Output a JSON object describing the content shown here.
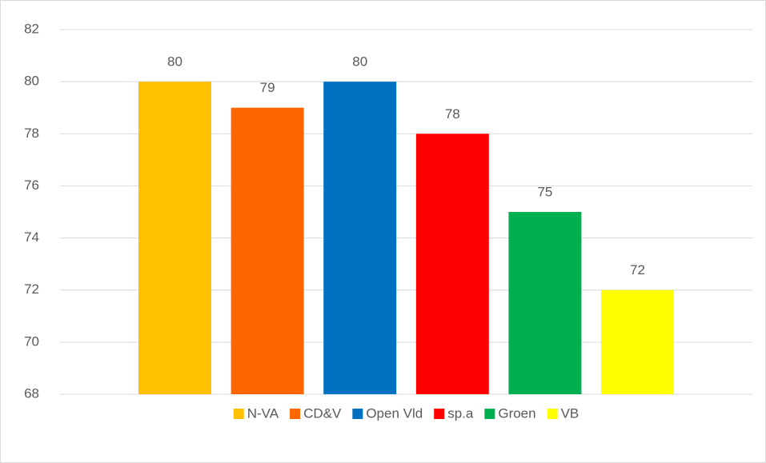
{
  "chart_data": {
    "type": "bar",
    "categories": [
      null
    ],
    "series": [
      {
        "name": "N-VA",
        "color": "#ffc000",
        "values": [
          80
        ]
      },
      {
        "name": "CD&V",
        "color": "#ff6600",
        "values": [
          79
        ]
      },
      {
        "name": "Open Vld",
        "color": "#0070c0",
        "values": [
          80
        ]
      },
      {
        "name": "sp.a",
        "color": "#ff0000",
        "values": [
          78
        ]
      },
      {
        "name": "Groen",
        "color": "#00b050",
        "values": [
          75
        ]
      },
      {
        "name": "VB",
        "color": "#ffff00",
        "values": [
          72
        ]
      }
    ],
    "ylim": [
      68,
      82
    ],
    "yticks": [
      68,
      70,
      72,
      74,
      76,
      78,
      80,
      82
    ],
    "grid": true,
    "legend": "bottom"
  }
}
